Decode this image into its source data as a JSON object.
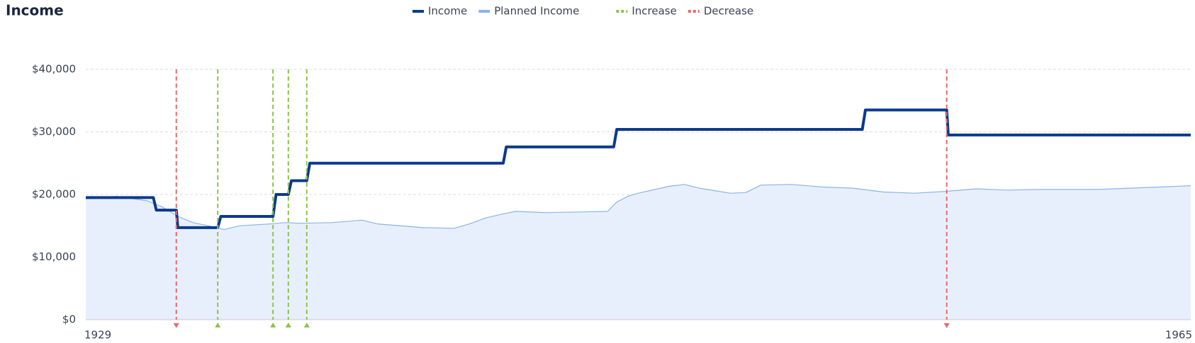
{
  "chart_data": {
    "type": "line",
    "title": "Income",
    "xlim": [
      1929,
      1965
    ],
    "xticks": [
      1929,
      1965
    ],
    "ylim": [
      0,
      40000
    ],
    "yticks": [
      {
        "value": 0,
        "label": "$0"
      },
      {
        "value": 10000,
        "label": "$10,000"
      },
      {
        "value": 20000,
        "label": "$20,000"
      },
      {
        "value": 30000,
        "label": "$30,000"
      },
      {
        "value": 40000,
        "label": "$40,000"
      }
    ],
    "grid": true,
    "series": [
      {
        "name": "Income",
        "color": "#0b3a8c",
        "x": [
          1929,
          1931.2,
          1931.3,
          1931.95,
          1932.0,
          1933.3,
          1933.4,
          1935.1,
          1935.2,
          1935.6,
          1935.7,
          1936.2,
          1936.3,
          1942.6,
          1942.7,
          1946.2,
          1946.3,
          1954.3,
          1954.4,
          1957.05,
          1957.1,
          1965
        ],
        "values": [
          19500,
          19500,
          17500,
          17500,
          14700,
          14700,
          16500,
          16500,
          20000,
          20000,
          22200,
          22200,
          25000,
          25000,
          27600,
          27600,
          30400,
          30400,
          33500,
          33500,
          29500,
          29500
        ]
      },
      {
        "name": "Planned Income",
        "color": "#8ab4e8",
        "fill": "#e8effc",
        "x": [
          1929,
          1930,
          1931,
          1931.5,
          1932,
          1932.5,
          1933,
          1933.5,
          1934,
          1935,
          1935.5,
          1936,
          1937,
          1938,
          1938.5,
          1939,
          1940,
          1941,
          1941.5,
          1942,
          1942.5,
          1943,
          1944,
          1945,
          1946,
          1946.3,
          1946.7,
          1947,
          1948,
          1948.5,
          1949,
          1950,
          1950.5,
          1951,
          1952,
          1953,
          1954,
          1955,
          1956,
          1957,
          1958,
          1959,
          1960,
          1961,
          1962,
          1963,
          1964,
          1965
        ],
        "values": [
          19300,
          19700,
          19000,
          18000,
          16500,
          15500,
          15000,
          14400,
          15000,
          15300,
          15500,
          15400,
          15500,
          15900,
          15300,
          15100,
          14700,
          14600,
          15300,
          16200,
          16800,
          17300,
          17100,
          17200,
          17300,
          18800,
          19800,
          20200,
          21300,
          21600,
          21000,
          20200,
          20300,
          21500,
          21600,
          21200,
          21000,
          20400,
          20200,
          20500,
          20900,
          20700,
          20800,
          20800,
          20800,
          21000,
          21200,
          21400
        ]
      }
    ],
    "markers": [
      {
        "name": "Increase",
        "color": "#8bc34a",
        "x": [
          1933.3,
          1935.1,
          1935.6,
          1936.2
        ]
      },
      {
        "name": "Decrease",
        "color": "#e86a6a",
        "x": [
          1931.95,
          1957.05
        ]
      }
    ]
  }
}
